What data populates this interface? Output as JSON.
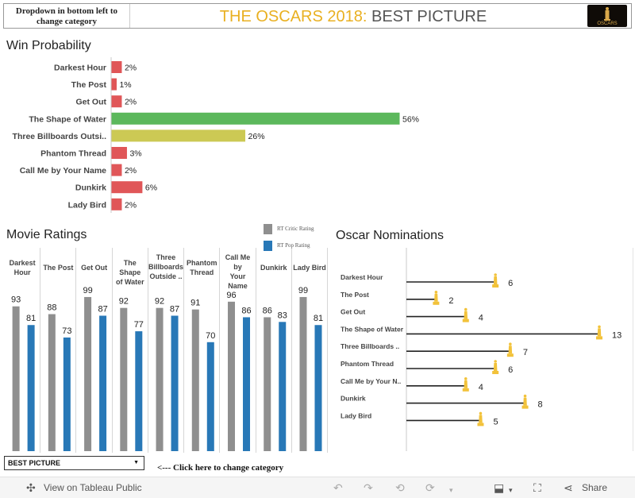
{
  "header": {
    "hint": "Dropdown in bottom left to change category",
    "title_accent": "THE OSCARS 2018:",
    "title_rest": " BEST PICTURE",
    "logo_text": "OSCARS"
  },
  "sections": {
    "win_probability": "Win Probability",
    "movie_ratings": "Movie Ratings",
    "oscar_nominations": "Oscar Nominations"
  },
  "colors": {
    "red": "#e05658",
    "green": "#5cb85c",
    "olive": "#ccc954",
    "grey": "#8f8f8f",
    "blue": "#2878b7",
    "gold": "#f2c23a",
    "accent_title": "#e9b021"
  },
  "chart_data": [
    {
      "type": "bar",
      "orientation": "horizontal",
      "title": "Win Probability",
      "categories": [
        "Darkest Hour",
        "The Post",
        "Get Out",
        "The Shape of Water",
        "Three Billboards Outsi..",
        "Phantom Thread",
        "Call Me by Your Name",
        "Dunkirk",
        "Lady Bird"
      ],
      "values": [
        2,
        1,
        2,
        56,
        26,
        3,
        2,
        6,
        2
      ],
      "value_labels": [
        "2%",
        "1%",
        "2%",
        "56%",
        "26%",
        "3%",
        "2%",
        "6%",
        "2%"
      ],
      "bar_colors": [
        "#e05658",
        "#e05658",
        "#e05658",
        "#5cb85c",
        "#ccc954",
        "#e05658",
        "#e05658",
        "#e05658",
        "#e05658"
      ],
      "xlim": [
        0,
        56
      ]
    },
    {
      "type": "bar",
      "title": "Movie Ratings",
      "categories": [
        "Darkest Hour",
        "The Post",
        "Get Out",
        "The Shape of Water",
        "Three Billboards Outside ..",
        "Phantom Thread",
        "Call Me by Your Name",
        "Dunkirk",
        "Lady Bird"
      ],
      "column_headers": [
        [
          "Darkest",
          "Hour"
        ],
        [
          "The Post"
        ],
        [
          "Get Out"
        ],
        [
          "The Shape",
          "of Water"
        ],
        [
          "Three",
          "Billboards",
          "Outside .."
        ],
        [
          "Phantom",
          "Thread"
        ],
        [
          "Call Me by",
          "Your",
          "Name"
        ],
        [
          "Dunkirk"
        ],
        [
          "Lady Bird"
        ]
      ],
      "series": [
        {
          "name": "RT Critic Rating",
          "values": [
            93,
            88,
            99,
            92,
            92,
            91,
            96,
            86,
            99
          ],
          "color": "#8f8f8f"
        },
        {
          "name": "RT Pop Rating",
          "values": [
            81,
            73,
            87,
            77,
            87,
            70,
            86,
            83,
            81
          ],
          "color": "#2878b7"
        }
      ],
      "ylim": [
        0,
        100
      ],
      "legend_position": "top-right"
    },
    {
      "type": "bar",
      "orientation": "horizontal",
      "style": "lollipop",
      "title": "Oscar Nominations",
      "categories": [
        "Darkest Hour",
        "The Post",
        "Get Out",
        "The Shape of Water",
        "Three Billboards ..",
        "Phantom Thread",
        "Call Me by Your N..",
        "Dunkirk",
        "Lady Bird"
      ],
      "values": [
        6,
        2,
        4,
        13,
        7,
        6,
        4,
        8,
        5
      ],
      "xlim": [
        0,
        13
      ],
      "marker": "oscar-statuette"
    }
  ],
  "controls": {
    "category_select": "BEST PICTURE",
    "change_hint": "<---  Click here to change category"
  },
  "footer": {
    "view_label": "View on Tableau Public",
    "share_label": "Share"
  }
}
